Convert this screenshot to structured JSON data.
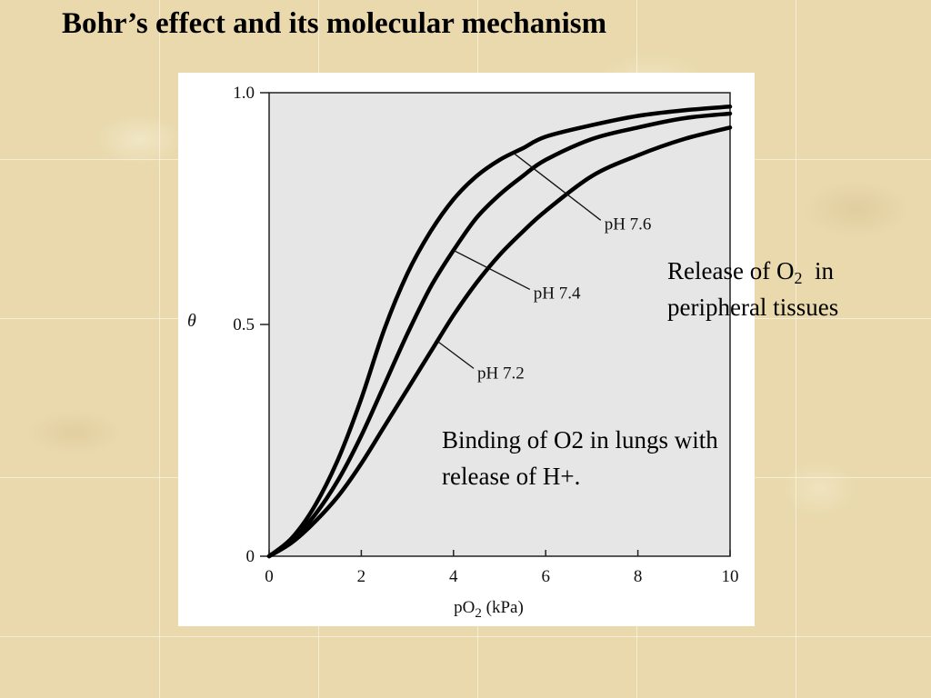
{
  "slide": {
    "title": "Bohr’s effect and its molecular mechanism"
  },
  "annotations": {
    "release_main": "Release of O",
    "release_sub": "2",
    "release_tail": "in",
    "release_line2": "peripheral tissues",
    "binding_line1": "Binding of O2 in lungs with",
    "binding_line2": "release of H+."
  },
  "chart_data": {
    "type": "line",
    "xlabel_main": "pO",
    "xlabel_sub": "2",
    "xlabel_tail": " (kPa)",
    "ylabel": "θ",
    "xlim": [
      0,
      10
    ],
    "ylim": [
      0,
      1
    ],
    "x_ticks": [
      "0",
      "2",
      "4",
      "6",
      "8",
      "10"
    ],
    "y_ticks": [
      "0",
      "0.5",
      "1.0"
    ],
    "grid": false,
    "plot_background": "#e6e6e6",
    "series": [
      {
        "name": "pH 7.6",
        "x": [
          0,
          0.5,
          1,
          1.5,
          2,
          2.5,
          3,
          3.5,
          4,
          4.5,
          5,
          5.5,
          6,
          7,
          8,
          9,
          10
        ],
        "y": [
          0,
          0.04,
          0.11,
          0.21,
          0.34,
          0.49,
          0.61,
          0.7,
          0.77,
          0.82,
          0.855,
          0.88,
          0.905,
          0.93,
          0.95,
          0.962,
          0.97
        ]
      },
      {
        "name": "pH 7.4",
        "x": [
          0,
          0.5,
          1,
          1.5,
          2,
          2.5,
          3,
          3.5,
          4,
          4.5,
          5,
          5.5,
          6,
          7,
          8,
          9,
          10
        ],
        "y": [
          0,
          0.035,
          0.09,
          0.165,
          0.26,
          0.37,
          0.48,
          0.58,
          0.66,
          0.73,
          0.78,
          0.82,
          0.855,
          0.9,
          0.925,
          0.945,
          0.955
        ]
      },
      {
        "name": "pH 7.2",
        "x": [
          0,
          0.5,
          1,
          1.5,
          2,
          2.5,
          3,
          3.5,
          4,
          4.5,
          5,
          5.5,
          6,
          7,
          8,
          9,
          10
        ],
        "y": [
          0,
          0.03,
          0.075,
          0.13,
          0.2,
          0.28,
          0.36,
          0.44,
          0.52,
          0.59,
          0.65,
          0.7,
          0.745,
          0.82,
          0.865,
          0.9,
          0.925
        ]
      }
    ],
    "series_labels": [
      {
        "text": "pH 7.6",
        "series": 0,
        "at_x": 5.3
      },
      {
        "text": "pH 7.4",
        "series": 1,
        "at_x": 4.0
      },
      {
        "text": "pH 7.2",
        "series": 2,
        "at_x": 3.65
      }
    ]
  }
}
